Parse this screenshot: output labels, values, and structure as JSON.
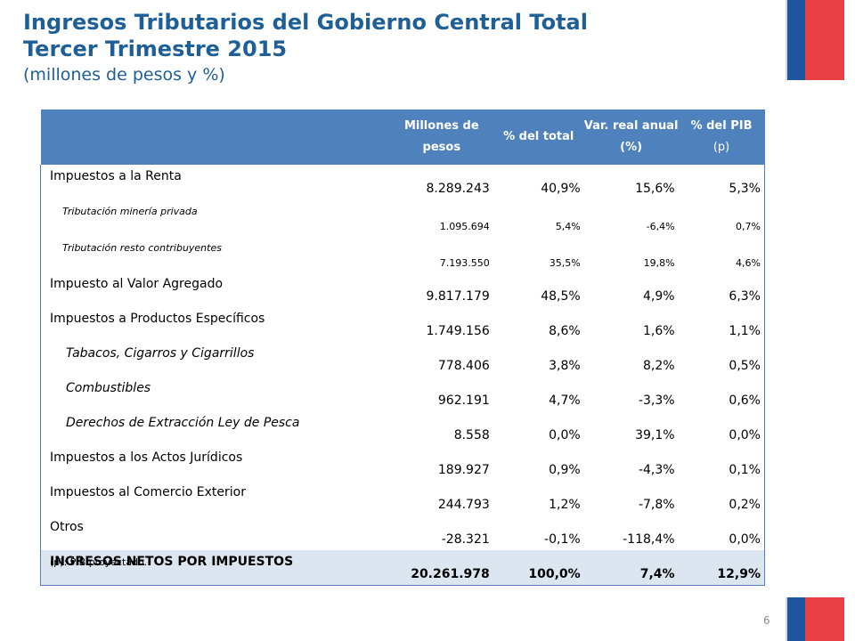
{
  "title": {
    "line1": "Ingresos Tributarios del Gobierno Central Total",
    "line2": "Tercer Trimestre 2015",
    "line3": "(millones de pesos y %)"
  },
  "table": {
    "headers": [
      "",
      "Millones de pesos",
      "% del total",
      "Var. real anual (%)",
      "% del PIB"
    ],
    "header_sub": "(p)",
    "rows": [
      {
        "label": "Impuestos a la Renta",
        "values": [
          "8.289.243",
          "40,9%",
          "15,6%",
          "5,3%"
        ]
      },
      {
        "label": "Tributación minería privada",
        "values": [
          "1.095.694",
          "5,4%",
          "-6,4%",
          "0,7%"
        ]
      },
      {
        "label": "Tributación resto contribuyentes",
        "values": [
          "7.193.550",
          "35,5%",
          "19,8%",
          "4,6%"
        ]
      },
      {
        "label": "Impuesto al Valor Agregado",
        "values": [
          "9.817.179",
          "48,5%",
          "4,9%",
          "6,3%"
        ]
      },
      {
        "label": "Impuestos a Productos Específicos",
        "values": [
          "1.749.156",
          "8,6%",
          "1,6%",
          "1,1%"
        ]
      },
      {
        "label": "Tabacos, Cigarros y Cigarrillos",
        "values": [
          "778.406",
          "3,8%",
          "8,2%",
          "0,5%"
        ]
      },
      {
        "label": "Combustibles",
        "values": [
          "962.191",
          "4,7%",
          "-3,3%",
          "0,6%"
        ]
      },
      {
        "label": "Derechos de Extracción Ley de Pesca",
        "values": [
          "8.558",
          "0,0%",
          "39,1%",
          "0,0%"
        ]
      },
      {
        "label": "Impuestos a los Actos Jurídicos",
        "values": [
          "189.927",
          "0,9%",
          "-4,3%",
          "0,1%"
        ]
      },
      {
        "label": "Impuestos al Comercio Exterior",
        "values": [
          "244.793",
          "1,2%",
          "-7,8%",
          "0,2%"
        ]
      },
      {
        "label": "Otros",
        "values": [
          "-28.321",
          "-0,1%",
          "-118,4%",
          "0,0%"
        ]
      },
      {
        "label": "INGRESOS NETOS POR IMPUESTOS",
        "values": [
          "20.261.978",
          "100,0%",
          "7,4%",
          "12,9%"
        ]
      }
    ]
  },
  "footnote": "(p): PIB proyectado.",
  "page_number": "6",
  "colors": {
    "title": "#1f5f97",
    "header_bg": "#4f81bd",
    "total_bg": "#dce6f1",
    "flag_blue": "#1e56a0",
    "flag_red": "#e94046"
  }
}
